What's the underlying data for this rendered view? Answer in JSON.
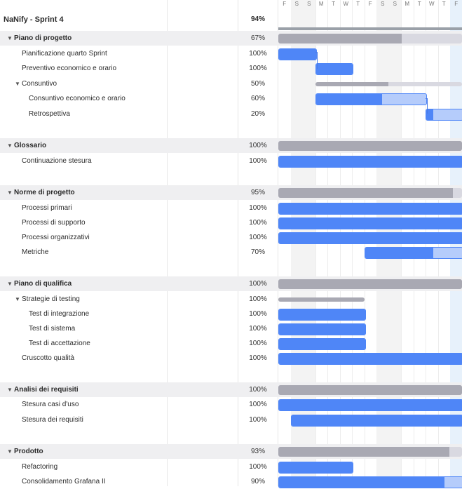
{
  "project": {
    "title": "NaNify - Sprint 4",
    "percent": "94%"
  },
  "days": [
    "F",
    "S",
    "S",
    "M",
    "T",
    "W",
    "T",
    "F",
    "S",
    "S",
    "M",
    "T",
    "W",
    "T",
    "F"
  ],
  "colors": {
    "task_done": "#4f86f7",
    "task_remaining": "#b5ccfb",
    "group_done": "#a9a9b3",
    "group_remaining": "#d9d9e1",
    "link": "#4b7be5"
  },
  "rows": [
    {
      "name": "Piano di progetto",
      "percent": "67%",
      "type": "group",
      "level": 0,
      "progress": 0.67
    },
    {
      "name": "Pianificazione quarto Sprint",
      "percent": "100%",
      "type": "task",
      "level": 1,
      "progress": 1.0
    },
    {
      "name": "Preventivo economico e orario",
      "percent": "100%",
      "type": "task",
      "level": 1,
      "progress": 1.0
    },
    {
      "name": "Consuntivo",
      "percent": "50%",
      "type": "subgroup",
      "level": 1,
      "progress": 0.5
    },
    {
      "name": "Consuntivo economico e orario",
      "percent": "60%",
      "type": "task",
      "level": 2,
      "progress": 0.6
    },
    {
      "name": "Retrospettiva",
      "percent": "20%",
      "type": "task",
      "level": 2,
      "progress": 0.2
    },
    {
      "name": "Glossario",
      "percent": "100%",
      "type": "group",
      "level": 0,
      "progress": 1.0
    },
    {
      "name": "Continuazione stesura",
      "percent": "100%",
      "type": "task",
      "level": 1,
      "progress": 1.0
    },
    {
      "name": "Norme di progetto",
      "percent": "95%",
      "type": "group",
      "level": 0,
      "progress": 0.95
    },
    {
      "name": "Processi primari",
      "percent": "100%",
      "type": "task",
      "level": 1,
      "progress": 1.0
    },
    {
      "name": "Processi di supporto",
      "percent": "100%",
      "type": "task",
      "level": 1,
      "progress": 1.0
    },
    {
      "name": "Processi organizzativi",
      "percent": "100%",
      "type": "task",
      "level": 1,
      "progress": 1.0
    },
    {
      "name": "Metriche",
      "percent": "70%",
      "type": "task",
      "level": 1,
      "progress": 0.7
    },
    {
      "name": "Piano di qualifica",
      "percent": "100%",
      "type": "group",
      "level": 0,
      "progress": 1.0
    },
    {
      "name": "Strategie di testing",
      "percent": "100%",
      "type": "subgroup",
      "level": 1,
      "progress": 1.0
    },
    {
      "name": "Test di integrazione",
      "percent": "100%",
      "type": "task",
      "level": 2,
      "progress": 1.0
    },
    {
      "name": "Test di sistema",
      "percent": "100%",
      "type": "task",
      "level": 2,
      "progress": 1.0
    },
    {
      "name": "Test di accettazione",
      "percent": "100%",
      "type": "task",
      "level": 2,
      "progress": 1.0
    },
    {
      "name": "Cruscotto qualità",
      "percent": "100%",
      "type": "task",
      "level": 1,
      "progress": 1.0
    },
    {
      "name": "Analisi dei requisiti",
      "percent": "100%",
      "type": "group",
      "level": 0,
      "progress": 1.0
    },
    {
      "name": "Stesura casi d'uso",
      "percent": "100%",
      "type": "task",
      "level": 1,
      "progress": 1.0
    },
    {
      "name": "Stesura dei requisiti",
      "percent": "100%",
      "type": "task",
      "level": 1,
      "progress": 1.0
    },
    {
      "name": "Prodotto",
      "percent": "93%",
      "type": "group",
      "level": 0,
      "progress": 0.93
    },
    {
      "name": "Refactoring",
      "percent": "100%",
      "type": "task",
      "level": 1,
      "progress": 1.0
    },
    {
      "name": "Consolidamento Grafana II",
      "percent": "90%",
      "type": "task",
      "level": 1,
      "progress": 0.9
    }
  ]
}
